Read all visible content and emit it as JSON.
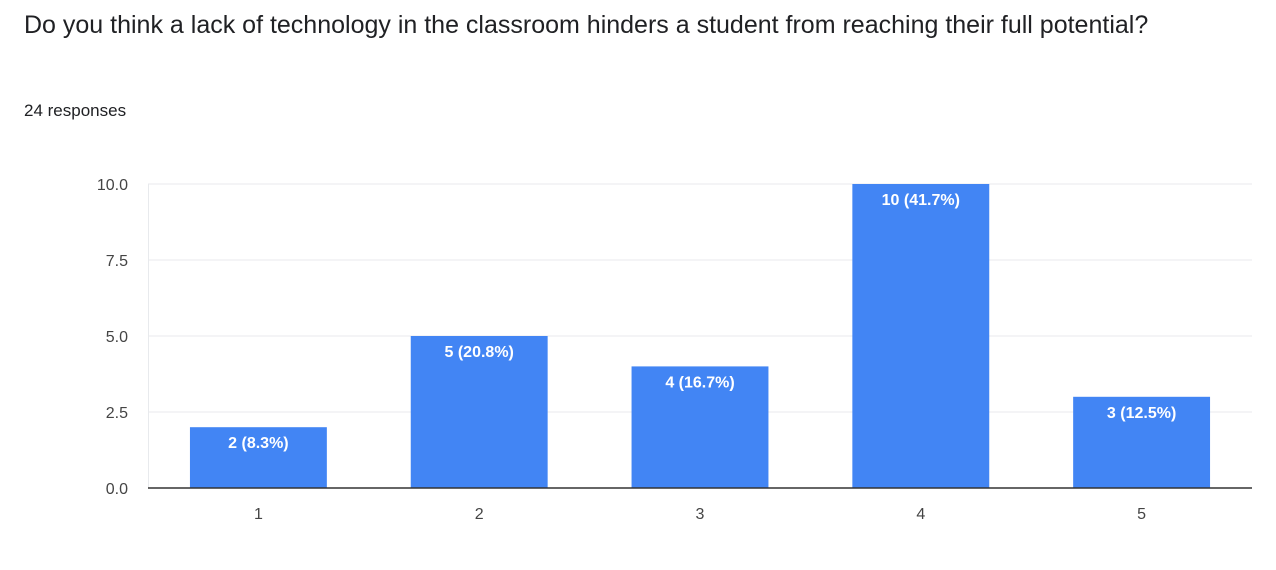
{
  "question": {
    "title": "Do you think a lack of technology in the classroom hinders a student from reaching their full potential?",
    "responses": "24 responses"
  },
  "colors": {
    "bar": "#4285f4",
    "grid": "#e8eaed",
    "axis": "#333333"
  },
  "chart_data": {
    "type": "bar",
    "categories": [
      "1",
      "2",
      "3",
      "4",
      "5"
    ],
    "values": [
      2,
      5,
      4,
      10,
      3
    ],
    "data_labels": [
      "2 (8.3%)",
      "5 (20.8%)",
      "4 (16.7%)",
      "10 (41.7%)",
      "3 (12.5%)"
    ],
    "yticks": [
      0,
      2.5,
      5,
      7.5,
      10
    ],
    "ytick_labels": [
      "0.0",
      "2.5",
      "5.0",
      "7.5",
      "10.0"
    ],
    "ylim": [
      0,
      10
    ],
    "grid": true
  }
}
